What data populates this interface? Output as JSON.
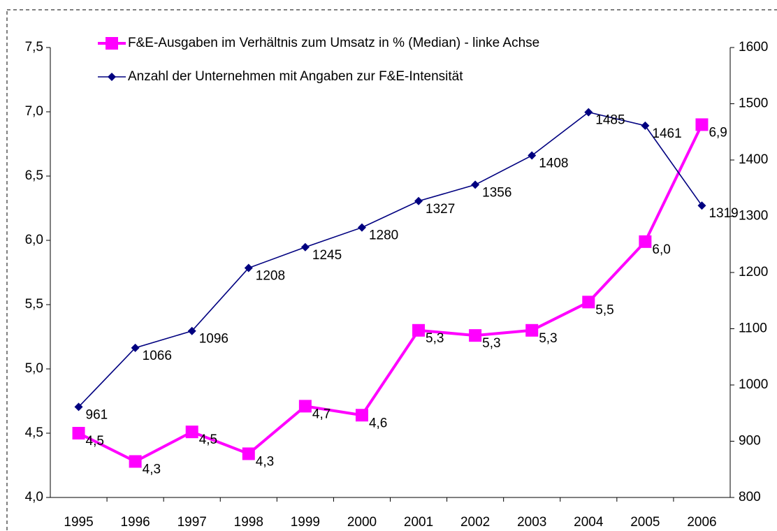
{
  "chart_data": {
    "type": "line",
    "categories": [
      "1995",
      "1996",
      "1997",
      "1998",
      "1999",
      "2000",
      "2001",
      "2002",
      "2003",
      "2004",
      "2005",
      "2006"
    ],
    "series": [
      {
        "name": "F&E-Ausgaben im Verhältnis zum Umsatz in % (Median) - linke Achse",
        "color": "#ff00ff",
        "values": [
          4.5,
          4.28,
          4.51,
          4.34,
          4.71,
          4.64,
          5.3,
          5.26,
          5.3,
          5.52,
          5.99,
          6.9
        ],
        "value_labels": [
          "4,5",
          "4,3",
          "4,5",
          "4,3",
          "4,7",
          "4,6",
          "5,3",
          "5,3",
          "5,3",
          "5,5",
          "6,0",
          "6,9"
        ]
      },
      {
        "name": "Anzahl der Unternehmen mit Angaben zur F&E-Intensität",
        "color": "#000080",
        "axis": "y2",
        "values": [
          961,
          1066,
          1096,
          1208,
          1245,
          1280,
          1327,
          1356,
          1408,
          1485,
          1461,
          1319
        ]
      }
    ],
    "ylim": [
      4.0,
      7.5
    ],
    "yticks": [
      {
        "value": 4.0,
        "label": "4,0"
      },
      {
        "value": 4.5,
        "label": "4,5"
      },
      {
        "value": 5.0,
        "label": "5,0"
      },
      {
        "value": 5.5,
        "label": "5,5"
      },
      {
        "value": 6.0,
        "label": "6,0"
      },
      {
        "value": 6.5,
        "label": "6,5"
      },
      {
        "value": 7.0,
        "label": "7,0"
      },
      {
        "value": 7.5,
        "label": "7,5"
      }
    ],
    "y2lim": [
      800,
      1600
    ],
    "y2ticks": [
      800,
      900,
      1000,
      1100,
      1200,
      1300,
      1400,
      1500,
      1600
    ],
    "grid": false,
    "legend": "top"
  }
}
